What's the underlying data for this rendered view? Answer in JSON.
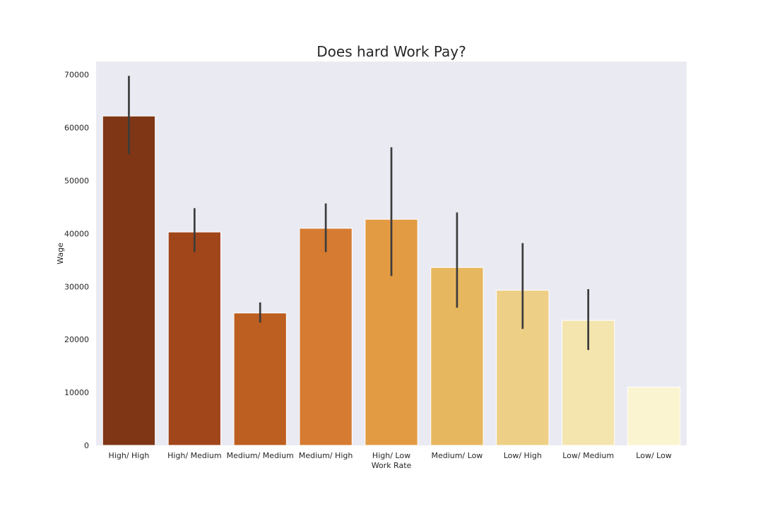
{
  "chart_data": {
    "type": "bar",
    "title": "Does hard Work Pay?",
    "xlabel": "Work Rate",
    "ylabel": "Wage",
    "ylim": [
      0,
      72500
    ],
    "yticks": [
      0,
      10000,
      20000,
      30000,
      40000,
      50000,
      60000,
      70000
    ],
    "grid": false,
    "categories": [
      "High/ High",
      "High/ Medium",
      "Medium/ Medium",
      "Medium/ High",
      "High/ Low",
      "Medium/ Low",
      "Low/ High",
      "Low/ Medium",
      "Low/ Low"
    ],
    "values": [
      62200,
      40300,
      25000,
      41000,
      42700,
      33600,
      29300,
      23600,
      11000
    ],
    "error_low": [
      55000,
      36500,
      23200,
      36500,
      32000,
      26000,
      22000,
      18000,
      null
    ],
    "error_high": [
      69800,
      44800,
      27000,
      45700,
      56300,
      44000,
      38200,
      29500,
      null
    ],
    "colors": [
      "#7f3615",
      "#a1461a",
      "#bd5f21",
      "#d57b32",
      "#e39b43",
      "#e7b75f",
      "#edcf86",
      "#f4e4ae",
      "#fbf4d0"
    ],
    "background": "#eaeaf2",
    "error_bar_color": "#3c3c3c"
  }
}
